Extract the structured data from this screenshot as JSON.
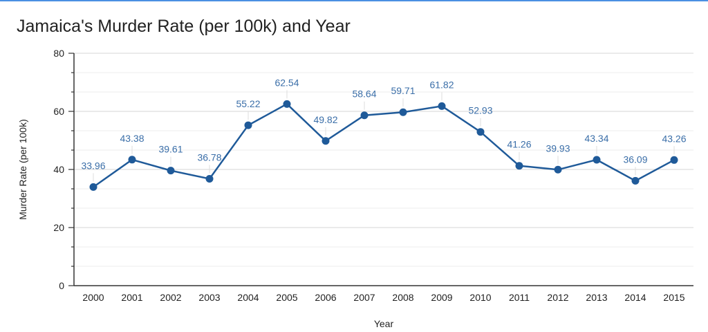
{
  "chart_data": {
    "type": "line",
    "title": "Jamaica's Murder Rate (per 100k) and Year",
    "xlabel": "Year",
    "ylabel": "Murder Rate (per 100k)",
    "ylim": [
      0,
      80
    ],
    "yticks": [
      "0",
      "20",
      "40",
      "60",
      "80"
    ],
    "grid": true,
    "legend": "none",
    "color": "#1f5a99",
    "label_color": "#3a6ea8",
    "categories": [
      "2000",
      "2001",
      "2002",
      "2003",
      "2004",
      "2005",
      "2006",
      "2007",
      "2008",
      "2009",
      "2010",
      "2011",
      "2012",
      "2013",
      "2014",
      "2015"
    ],
    "values": [
      33.96,
      43.38,
      39.61,
      36.78,
      55.22,
      62.54,
      49.82,
      58.64,
      59.71,
      61.82,
      52.93,
      41.26,
      39.93,
      43.34,
      36.09,
      43.26
    ]
  }
}
